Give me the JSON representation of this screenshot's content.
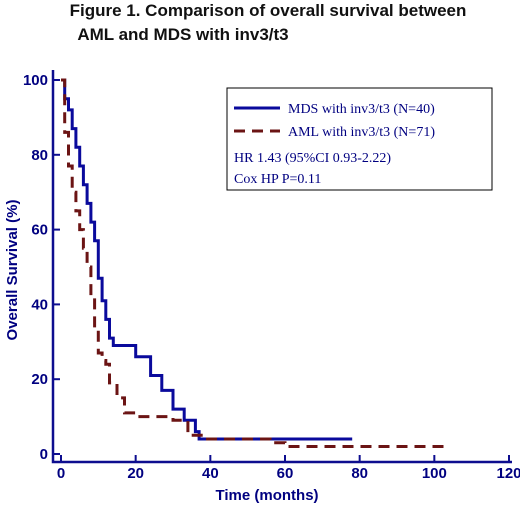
{
  "chart_data": {
    "type": "line",
    "title_lines": [
      "Figure 1. Comparison of overall survival between",
      "AML and MDS with inv3/t3"
    ],
    "xlabel": "Time (months)",
    "ylabel": "Overall Survival (%)",
    "xlim": [
      0,
      120
    ],
    "ylim": [
      0,
      100
    ],
    "xticks": [
      0,
      20,
      40,
      60,
      80,
      100,
      120
    ],
    "yticks": [
      0,
      20,
      40,
      60,
      80,
      100
    ],
    "grid": false,
    "legend_position": "top-right",
    "series": [
      {
        "name": "MDS with inv3/t3 (N=40)",
        "color": "#0a0a9c",
        "style": "solid",
        "x": [
          0,
          1,
          2,
          3,
          4,
          5,
          6,
          7,
          8,
          9,
          10,
          11,
          12,
          13,
          14,
          15,
          20,
          24,
          27,
          30,
          33,
          36,
          37,
          78
        ],
        "y": [
          100,
          95,
          92,
          87,
          82,
          77,
          72,
          67,
          62,
          57,
          47,
          41,
          36,
          31,
          29,
          29,
          26,
          21,
          17,
          12,
          9,
          6,
          4,
          4
        ]
      },
      {
        "name": "AML with inv3/t3 (N=71)",
        "color": "#6b1414",
        "style": "dashed",
        "x": [
          0,
          1,
          2,
          3,
          4,
          5,
          6,
          7,
          8,
          9,
          10,
          11,
          12,
          13,
          15,
          17,
          20,
          30,
          34,
          38,
          56,
          60,
          104
        ],
        "y": [
          100,
          86,
          77,
          70,
          65,
          60,
          55,
          50,
          42,
          33,
          27,
          25,
          24,
          19,
          15,
          11,
          10,
          9,
          5,
          4,
          3,
          2,
          2
        ]
      }
    ],
    "annotations": [
      "HR 1.43 (95%CI 0.93-2.22)",
      "Cox HP P=0.11"
    ]
  }
}
